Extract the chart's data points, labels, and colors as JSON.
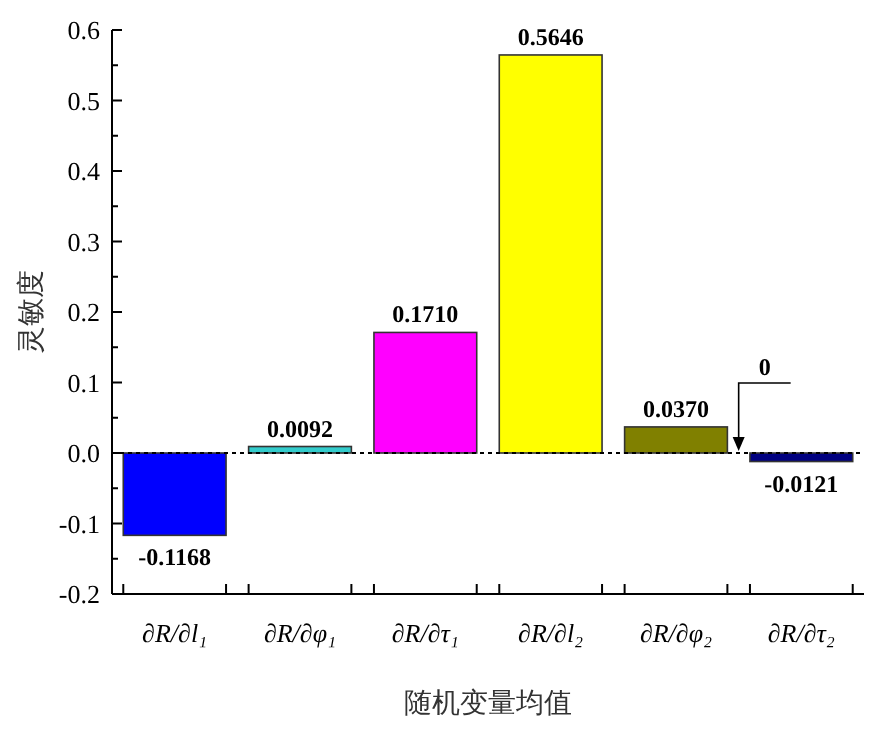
{
  "chart_data": {
    "type": "bar",
    "categories": [
      "∂R/∂l₁",
      "∂R/∂φ₁",
      "∂R/∂τ₁",
      "∂R/∂l₂",
      "∂R/∂φ₂",
      "∂R/∂τ₂"
    ],
    "values": [
      -0.1168,
      0.0092,
      0.171,
      0.5646,
      0.037,
      -0.0121
    ],
    "colors": [
      "#0000ff",
      "#33cccc",
      "#ff00ff",
      "#ffff00",
      "#808000",
      "#000080"
    ],
    "value_labels": [
      "-0.1168",
      "0.0092",
      "0.1710",
      "0.5646",
      "0.0370",
      "-0.0121"
    ],
    "xlabel": "随机变量均值",
    "ylabel": "灵敏度",
    "ylim": [
      -0.2,
      0.6
    ],
    "yticks": [
      {
        "value": -0.2,
        "label": "-0.2"
      },
      {
        "value": -0.15,
        "label": null
      },
      {
        "value": -0.1,
        "label": "-0.1"
      },
      {
        "value": -0.05,
        "label": null
      },
      {
        "value": 0,
        "label": "0.0"
      },
      {
        "value": 0.05,
        "label": null
      },
      {
        "value": 0.1,
        "label": "0.1"
      },
      {
        "value": 0.15,
        "label": null
      },
      {
        "value": 0.2,
        "label": "0.2"
      },
      {
        "value": 0.25,
        "label": null
      },
      {
        "value": 0.3,
        "label": "0.3"
      },
      {
        "value": 0.35,
        "label": null
      },
      {
        "value": 0.4,
        "label": "0.4"
      },
      {
        "value": 0.45,
        "label": null
      },
      {
        "value": 0.5,
        "label": "0.5"
      },
      {
        "value": 0.55,
        "label": null
      },
      {
        "value": 0.6,
        "label": "0.6"
      }
    ],
    "ref_lines": [
      {
        "axis": "y",
        "value": 0,
        "line_style": "dotted",
        "color": "#000000"
      }
    ],
    "annotations": [
      "0"
    ]
  }
}
